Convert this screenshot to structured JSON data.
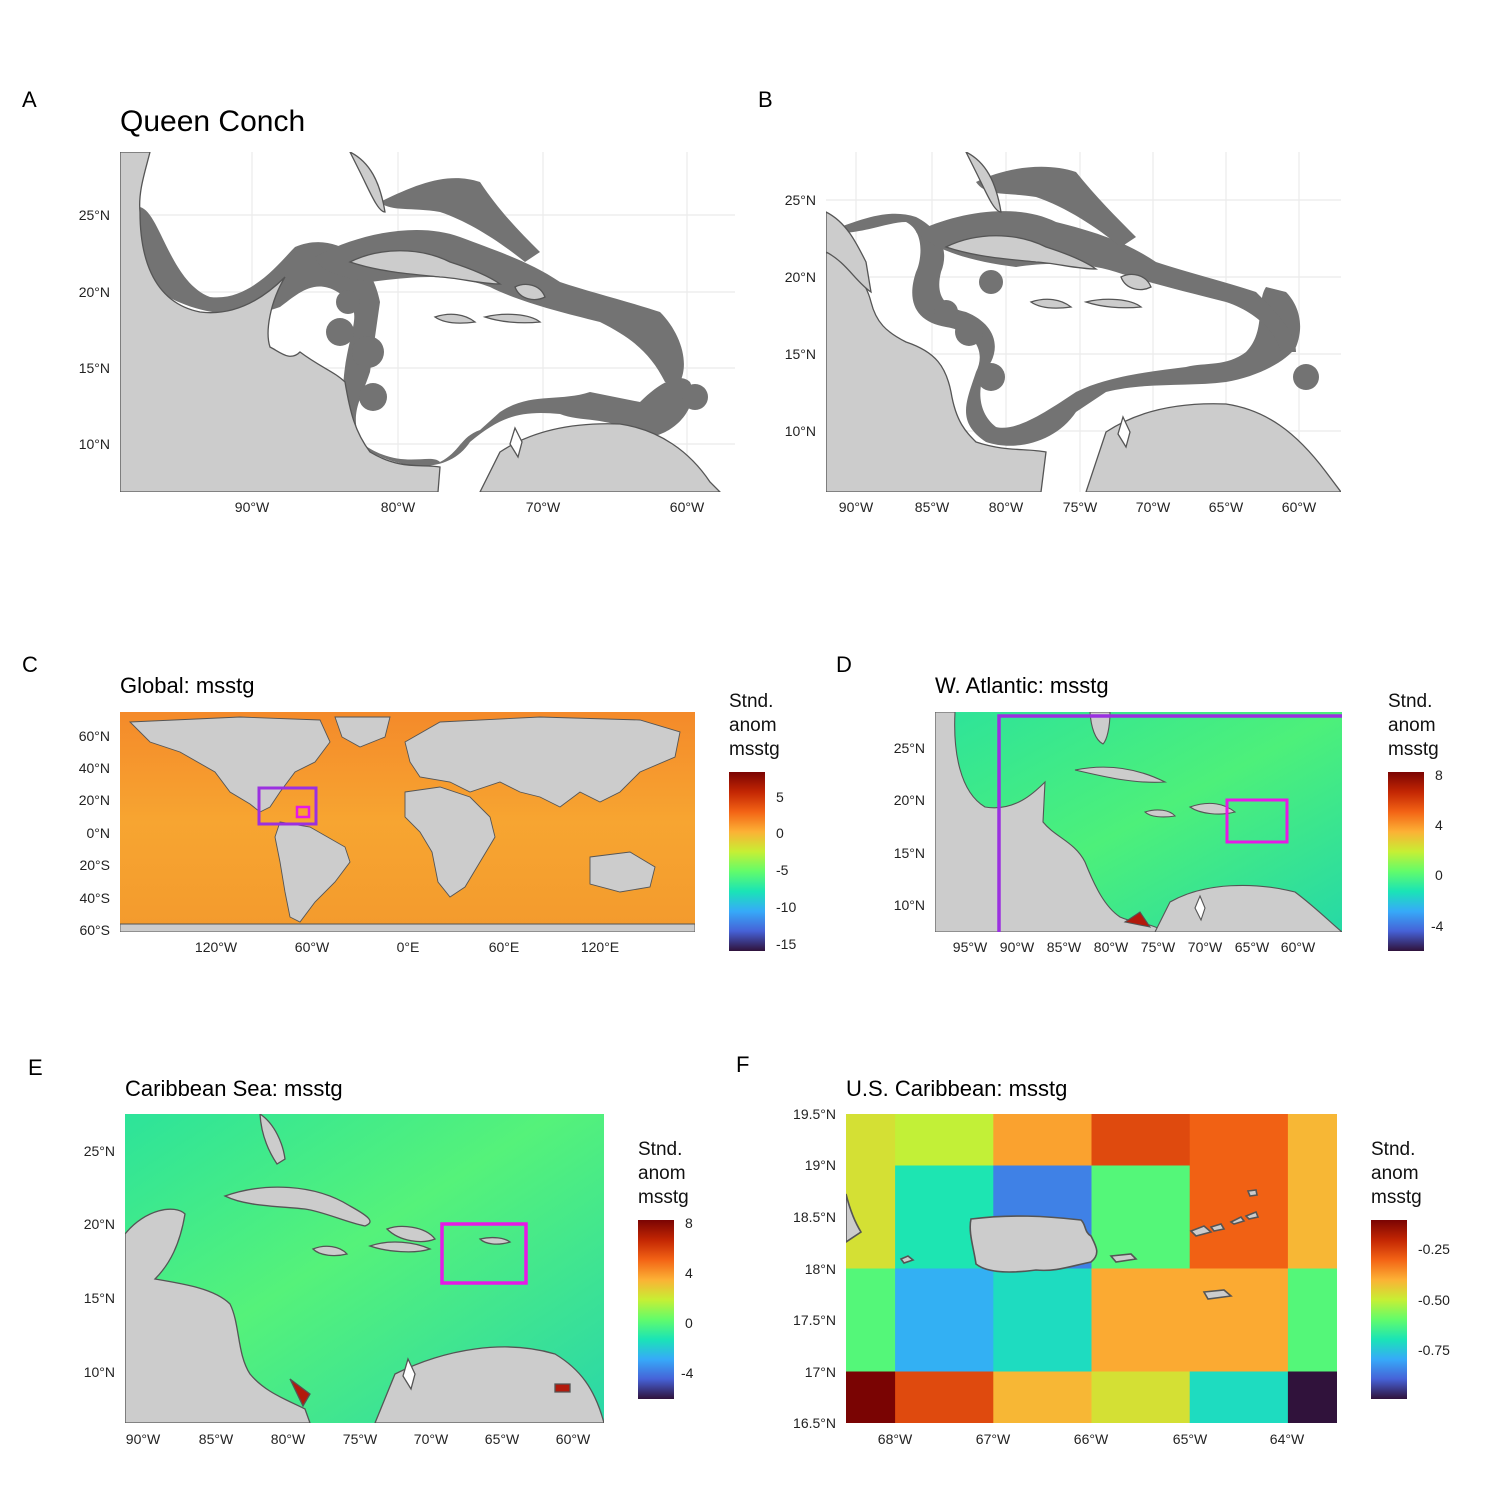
{
  "panels": {
    "A": {
      "letter": "A",
      "title": "Queen Conch",
      "yticks": [
        "25°N",
        "20°N",
        "15°N",
        "10°N"
      ],
      "xticks": [
        "90°W",
        "80°W",
        "70°W",
        "60°W"
      ]
    },
    "B": {
      "letter": "B",
      "yticks": [
        "25°N",
        "20°N",
        "15°N",
        "10°N"
      ],
      "xticks": [
        "90°W",
        "85°W",
        "80°W",
        "75°W",
        "70°W",
        "65°W",
        "60°W"
      ]
    },
    "C": {
      "letter": "C",
      "title": "Global: msstg",
      "yticks": [
        "60°N",
        "40°N",
        "20°N",
        "0°N",
        "20°S",
        "40°S",
        "60°S"
      ],
      "xticks": [
        "120°W",
        "60°W",
        "0°E",
        "60°E",
        "120°E"
      ],
      "legend": {
        "line1": "Stnd.",
        "line2": "anom",
        "line3": "msstg",
        "ticks": [
          "5",
          "0",
          "-5",
          "-10",
          "-15"
        ]
      }
    },
    "D": {
      "letter": "D",
      "title": "W. Atlantic: msstg",
      "yticks": [
        "25°N",
        "20°N",
        "15°N",
        "10°N"
      ],
      "xticks": [
        "95°W",
        "90°W",
        "85°W",
        "80°W",
        "75°W",
        "70°W",
        "65°W",
        "60°W"
      ],
      "legend": {
        "line1": "Stnd.",
        "line2": "anom",
        "line3": "msstg",
        "ticks": [
          "8",
          "4",
          "0",
          "-4"
        ]
      }
    },
    "E": {
      "letter": "E",
      "title": "Caribbean Sea: msstg",
      "yticks": [
        "25°N",
        "20°N",
        "15°N",
        "10°N"
      ],
      "xticks": [
        "90°W",
        "85°W",
        "80°W",
        "75°W",
        "70°W",
        "65°W",
        "60°W"
      ],
      "legend": {
        "line1": "Stnd.",
        "line2": "anom",
        "line3": "msstg",
        "ticks": [
          "8",
          "4",
          "0",
          "-4"
        ]
      }
    },
    "F": {
      "letter": "F",
      "title": "U.S. Caribbean: msstg",
      "yticks": [
        "19.5°N",
        "19°N",
        "18.5°N",
        "18°N",
        "17.5°N",
        "17°N",
        "16.5°N"
      ],
      "xticks": [
        "68°W",
        "67°W",
        "66°W",
        "65°W",
        "64°W"
      ],
      "legend": {
        "line1": "Stnd.",
        "line2": "anom",
        "line3": "msstg",
        "ticks": [
          "-0.25",
          "-0.50",
          "-0.75"
        ]
      }
    }
  },
  "colors": {
    "land": "#cccccc",
    "habitat": "#737373",
    "border": "#555555",
    "grid": "#ebebeb",
    "box_purple": "#9b30e0",
    "box_magenta": "#e619e6"
  },
  "chart_data": {
    "type": "heatmap",
    "colorscale": "turbo",
    "panel_F": {
      "x_lon": [
        "-68.5..-68",
        "-68..-67",
        "-67..-66",
        "-66..-65",
        "-65..-64",
        "-64..-63.5"
      ],
      "y_lat": [
        "19.5..19",
        "19..18",
        "18..17",
        "17..16.5"
      ],
      "values": [
        [
          -0.55,
          -0.58,
          -0.45,
          -0.3,
          -0.36,
          -0.48
        ],
        [
          -0.55,
          -0.78,
          -0.95,
          -0.7,
          -0.36,
          -0.48
        ],
        [
          -0.7,
          -0.88,
          -0.8,
          -0.46,
          -0.46,
          -0.7
        ],
        [
          -0.05,
          -0.3,
          -0.48,
          -0.55,
          -0.8,
          -1.1
        ]
      ],
      "range": [
        -1.1,
        -0.05
      ]
    }
  }
}
